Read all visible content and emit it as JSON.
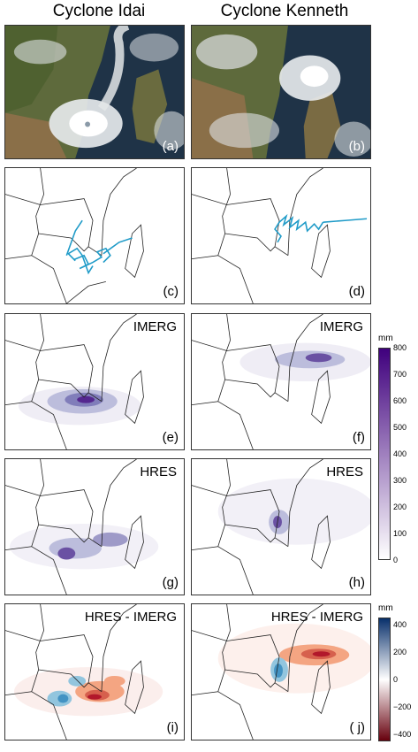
{
  "columns": {
    "left_title": "Cyclone Idai",
    "right_title": "Cyclone Kenneth"
  },
  "panels": {
    "a": "(a)",
    "b": "(b)",
    "c": "(c)",
    "d": "(d)",
    "e": "(e)",
    "f": "(f)",
    "g": "(g)",
    "h": "(h)",
    "i": "(i)",
    "j": "( j)"
  },
  "titles": {
    "e": "IMERG",
    "f": "IMERG",
    "g": "HRES",
    "h": "HRES",
    "i": "HRES - IMERG",
    "j": "HRES - IMERG"
  },
  "colorbar_rain": {
    "unit": "mm",
    "ticks": [
      "800",
      "700",
      "600",
      "500",
      "400",
      "300",
      "200",
      "100",
      "0"
    ],
    "colors": [
      "#ffffff",
      "#3f007d"
    ]
  },
  "colorbar_diff": {
    "unit": "mm",
    "ticks": [
      "400",
      "200",
      "0",
      "−200",
      "−400"
    ],
    "colors": [
      "#08306b",
      "#ffffff",
      "#67000d"
    ]
  },
  "track_color": "#1f9bc8"
}
